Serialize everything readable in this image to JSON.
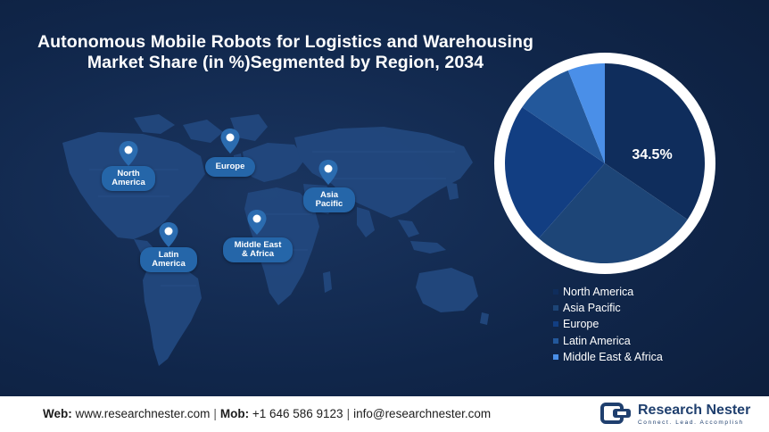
{
  "chart_data": {
    "type": "pie",
    "title_line1": "Autonomous Mobile Robots for Logistics and Warehousing",
    "title_line2": "Market Share (in %)Segmented by Region, 2034",
    "categories": [
      "North America",
      "Asia Pacific",
      "Europe",
      "Latin America",
      "Middle East & Africa"
    ],
    "values": [
      34.5,
      27,
      23,
      9.5,
      6
    ],
    "colors": [
      "#0f2d5c",
      "#1d4577",
      "#123e82",
      "#23589b",
      "#4a8fe8"
    ],
    "data_label": "34.5%",
    "legend_position": "bottom-right"
  },
  "map_labels": {
    "north_america": "North America",
    "europe": "Europe",
    "asia_pacific": "Asia Pacific",
    "middle_east_africa": "Middle East & Africa",
    "latin_america": "Latin America"
  },
  "footer": {
    "web_label": "Web:",
    "web_value": "www.researchnester.com",
    "mob_label": "Mob:",
    "mob_value": "+1 646 586 9123",
    "email": "info@researchnester.com",
    "brand_name": "Research Nester",
    "brand_tagline": "Connect. Lead. Accomplish"
  }
}
